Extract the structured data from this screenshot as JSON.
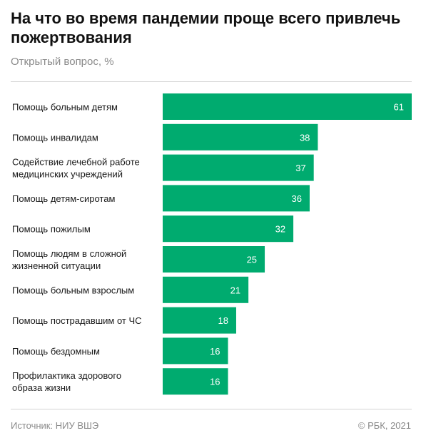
{
  "title": "На что во время пандемии проще всего привлечь пожертвования",
  "subtitle": "Открытый вопрос, %",
  "source": "Источник: НИУ ВШЭ",
  "copyright": "© РБК, 2021",
  "colors": {
    "bar": "#00ab6f",
    "value_text": "#ffffff"
  },
  "chart_data": {
    "type": "bar",
    "orientation": "horizontal",
    "categories": [
      [
        "Помощь больным детям"
      ],
      [
        "Помощь инвалидам"
      ],
      [
        "Содействие лечебной работе",
        "медицинских учреждений"
      ],
      [
        "Помощь детям-сиротам"
      ],
      [
        "Помощь пожилым"
      ],
      [
        "Помощь людям в сложной",
        "жизненной ситуации"
      ],
      [
        "Помощь больным взрослым"
      ],
      [
        "Помощь пострадавшим от ЧС"
      ],
      [
        "Помощь бездомным"
      ],
      [
        "Профилактика здорового",
        "образа жизни"
      ]
    ],
    "values": [
      61,
      38,
      37,
      36,
      32,
      25,
      21,
      18,
      16,
      16
    ],
    "xlim": [
      0,
      61
    ],
    "grid": false,
    "legend": "none"
  }
}
